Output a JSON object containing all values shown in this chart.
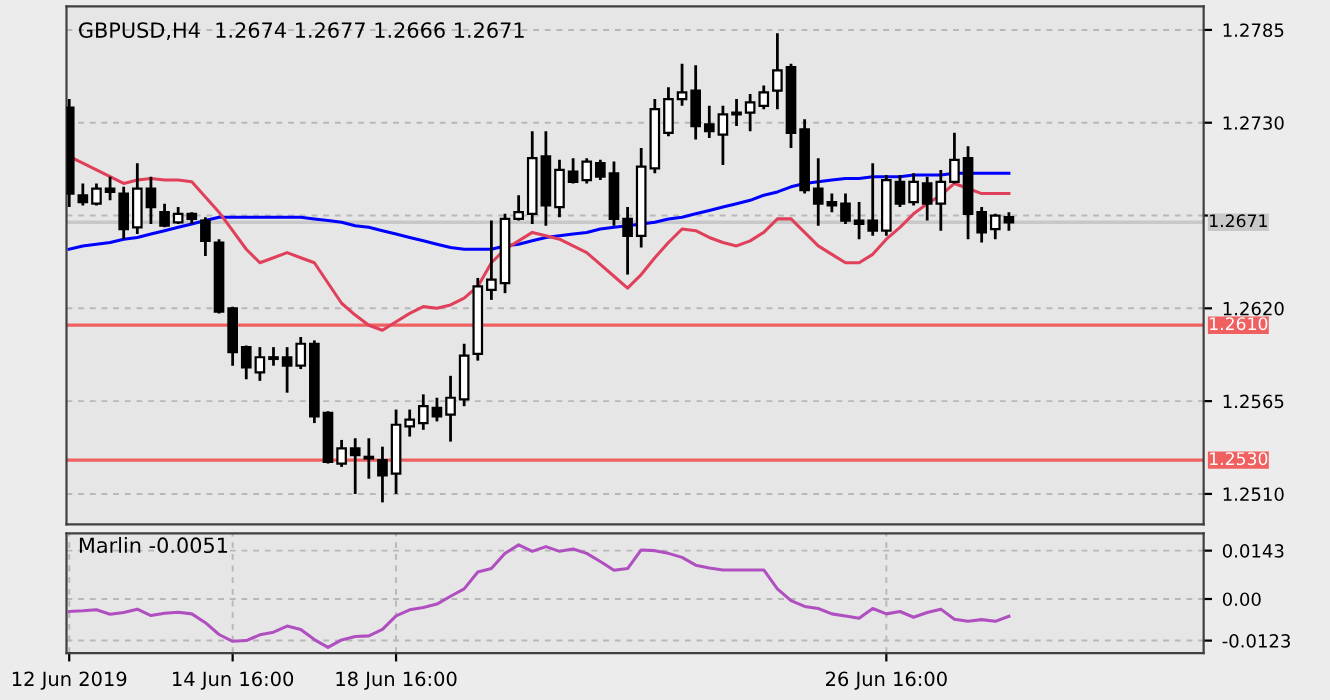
{
  "chart_data": [
    {
      "type": "candlestick",
      "title": "GBPUSD,H4  1.2674 1.2677 1.2666 1.2671",
      "categories": [
        null,
        null,
        null,
        null,
        null,
        null,
        null,
        null,
        null,
        null,
        null,
        null,
        null,
        null,
        null,
        null,
        null,
        null,
        null,
        null,
        null,
        null,
        null,
        null,
        null,
        null,
        null,
        null,
        null,
        null,
        null,
        null,
        null,
        null,
        null,
        null,
        null,
        null,
        null,
        null,
        null,
        null,
        null,
        null,
        null,
        null,
        null,
        null,
        null,
        null,
        null,
        null,
        null,
        null,
        null,
        null,
        null,
        null,
        null,
        null,
        null,
        null,
        null,
        null,
        null,
        null,
        null,
        null,
        null,
        null
      ],
      "ohlc": [
        [
          1.2739,
          1.2744,
          1.268,
          1.2688
        ],
        [
          1.2687,
          1.2694,
          1.2681,
          1.2683
        ],
        [
          1.2682,
          1.2694,
          1.2681,
          1.2691
        ],
        [
          1.2691,
          1.2698,
          1.2684,
          1.2689
        ],
        [
          1.2688,
          1.2692,
          1.2661,
          1.2667
        ],
        [
          1.2668,
          1.2706,
          1.2664,
          1.2691
        ],
        [
          1.2691,
          1.2698,
          1.267,
          1.268
        ],
        [
          1.2677,
          1.2682,
          1.2668,
          1.2669
        ],
        [
          1.2671,
          1.268,
          1.267,
          1.2676
        ],
        [
          1.2676,
          1.2677,
          1.267,
          1.2673
        ],
        [
          1.2672,
          1.2674,
          1.2651,
          1.266
        ],
        [
          1.2659,
          1.2661,
          1.2617,
          1.2618
        ],
        [
          1.262,
          1.2621,
          1.2586,
          1.2594
        ],
        [
          1.2597,
          1.2598,
          1.2578,
          1.2585
        ],
        [
          1.2582,
          1.2597,
          1.2577,
          1.2591
        ],
        [
          1.259,
          1.2597,
          1.2586,
          1.2591
        ],
        [
          1.2591,
          1.2597,
          1.257,
          1.2586
        ],
        [
          1.2586,
          1.2603,
          1.2584,
          1.2599
        ],
        [
          1.2599,
          1.2601,
          1.2552,
          1.2556
        ],
        [
          1.2558,
          1.2559,
          1.2528,
          1.2529
        ],
        [
          1.2528,
          1.2542,
          1.2526,
          1.2537
        ],
        [
          1.2537,
          1.2543,
          1.251,
          1.2533
        ],
        [
          1.2532,
          1.2543,
          1.2519,
          1.2531
        ],
        [
          1.253,
          1.2538,
          1.2505,
          1.2521
        ],
        [
          1.2522,
          1.256,
          1.251,
          1.2551
        ],
        [
          1.255,
          1.256,
          1.2544,
          1.2554
        ],
        [
          1.2552,
          1.2569,
          1.2548,
          1.2562
        ],
        [
          1.2561,
          1.2567,
          1.2553,
          1.2556
        ],
        [
          1.2557,
          1.258,
          1.2541,
          1.2567
        ],
        [
          1.2566,
          1.2599,
          1.2562,
          1.2592
        ],
        [
          1.2593,
          1.2638,
          1.2589,
          1.2633
        ],
        [
          1.2631,
          1.2672,
          1.2625,
          1.2637
        ],
        [
          1.2635,
          1.2676,
          1.2629,
          1.2673
        ],
        [
          1.2673,
          1.2687,
          1.2672,
          1.2677
        ],
        [
          1.2676,
          1.2725,
          1.267,
          1.2709
        ],
        [
          1.271,
          1.2725,
          1.2669,
          1.2681
        ],
        [
          1.268,
          1.2708,
          1.2674,
          1.2702
        ],
        [
          1.2701,
          1.2709,
          1.2694,
          1.2695
        ],
        [
          1.2696,
          1.2709,
          1.2694,
          1.2707
        ],
        [
          1.2706,
          1.2708,
          1.2696,
          1.2698
        ],
        [
          1.27,
          1.2707,
          1.2669,
          1.2673
        ],
        [
          1.2673,
          1.268,
          1.264,
          1.2663
        ],
        [
          1.2663,
          1.2715,
          1.2656,
          1.2704
        ],
        [
          1.2703,
          1.2744,
          1.27,
          1.2738
        ],
        [
          1.2724,
          1.2751,
          1.2722,
          1.2744
        ],
        [
          1.2744,
          1.2765,
          1.274,
          1.2748
        ],
        [
          1.2749,
          1.2764,
          1.272,
          1.2728
        ],
        [
          1.2729,
          1.274,
          1.2721,
          1.2725
        ],
        [
          1.2723,
          1.274,
          1.2705,
          1.2735
        ],
        [
          1.2735,
          1.2744,
          1.2728,
          1.2736
        ],
        [
          1.2736,
          1.2747,
          1.2725,
          1.2742
        ],
        [
          1.274,
          1.2752,
          1.2738,
          1.2748
        ],
        [
          1.2749,
          1.2783,
          1.2738,
          1.2761
        ],
        [
          1.2763,
          1.2765,
          1.2715,
          1.2724
        ],
        [
          1.2726,
          1.2732,
          1.2688,
          1.269
        ],
        [
          1.2691,
          1.2709,
          1.2669,
          1.2682
        ],
        [
          1.2683,
          1.2688,
          1.2677,
          1.2681
        ],
        [
          1.2682,
          1.2688,
          1.267,
          1.2672
        ],
        [
          1.2672,
          1.2683,
          1.2661,
          1.267
        ],
        [
          1.2672,
          1.2706,
          1.2663,
          1.2666
        ],
        [
          1.2666,
          1.2699,
          1.2663,
          1.2696
        ],
        [
          1.2695,
          1.2699,
          1.268,
          1.2682
        ],
        [
          1.2683,
          1.27,
          1.2681,
          1.2695
        ],
        [
          1.2694,
          1.2698,
          1.2672,
          1.2682
        ],
        [
          1.2682,
          1.2702,
          1.2666,
          1.2695
        ],
        [
          1.2695,
          1.2724,
          1.2694,
          1.2708
        ],
        [
          1.2709,
          1.2716,
          1.2661,
          1.2676
        ],
        [
          1.2677,
          1.268,
          1.2659,
          1.2665
        ],
        [
          1.2667,
          1.2676,
          1.2661,
          1.2675
        ],
        [
          1.2674,
          1.2677,
          1.2666,
          1.2671
        ]
      ],
      "series": [
        {
          "type": "line",
          "color": "#0000ff",
          "values": [
            1.2655,
            1.2657,
            1.2658,
            1.2659,
            1.2661,
            1.2662,
            1.2664,
            1.2666,
            1.2668,
            1.267,
            1.2672,
            1.2674,
            1.2674,
            1.2674,
            1.2674,
            1.2674,
            1.2674,
            1.2674,
            1.2673,
            1.2672,
            1.2671,
            1.2669,
            1.2668,
            1.2666,
            1.2664,
            1.2662,
            1.266,
            1.2658,
            1.2656,
            1.2655,
            1.2655,
            1.2655,
            1.2657,
            1.2658,
            1.266,
            1.2662,
            1.2663,
            1.2664,
            1.2665,
            1.2667,
            1.2668,
            1.2669,
            1.267,
            1.2671,
            1.2673,
            1.2674,
            1.2676,
            1.2678,
            1.268,
            1.2682,
            1.2684,
            1.2687,
            1.2689,
            1.2692,
            1.2694,
            1.2695,
            1.2696,
            1.2697,
            1.2697,
            1.2698,
            1.2698,
            1.2698,
            1.2699,
            1.2699,
            1.2699,
            1.27,
            1.27,
            1.27,
            1.27,
            1.27
          ]
        },
        {
          "type": "line",
          "color": "#e0405a",
          "values": [
            1.271,
            1.2706,
            1.2702,
            1.2698,
            1.2694,
            1.2696,
            1.2697,
            1.2696,
            1.2696,
            1.2695,
            1.2686,
            1.2677,
            1.2666,
            1.2655,
            1.2647,
            1.265,
            1.2653,
            1.265,
            1.2647,
            1.2635,
            1.2623,
            1.2616,
            1.261,
            1.2607,
            1.2612,
            1.2617,
            1.2621,
            1.262,
            1.2622,
            1.2626,
            1.2633,
            1.2647,
            1.2655,
            1.266,
            1.2665,
            1.2663,
            1.2661,
            1.2657,
            1.2653,
            1.2646,
            1.2639,
            1.2632,
            1.264,
            1.265,
            1.2659,
            1.2667,
            1.2666,
            1.2662,
            1.2659,
            1.2657,
            1.266,
            1.2665,
            1.2673,
            1.2673,
            1.2665,
            1.2657,
            1.2652,
            1.2647,
            1.2647,
            1.2652,
            1.2661,
            1.2668,
            1.2676,
            1.2682,
            1.2687,
            1.2694,
            1.2691,
            1.2688,
            1.2688,
            1.2688
          ]
        }
      ],
      "ylim": [
        1.2492,
        1.2799
      ],
      "yticks": [
        1.2785,
        {
          "value": 1.273,
          "label": "1.2730"
        },
        {
          "value": 1.2675,
          "label": null
        },
        {
          "value": 1.262,
          "label": "1.2620"
        },
        1.2565,
        {
          "value": 1.251,
          "label": "1.2510"
        }
      ],
      "tick_labels": "y",
      "grid": true,
      "ref_lines": [
        {
          "axis": "y",
          "value": 1.261,
          "label": "1.2610",
          "color": "#f06060"
        },
        {
          "axis": "y",
          "value": 1.253,
          "label": "1.2530",
          "color": "#f06060"
        },
        {
          "axis": "y",
          "value": 1.2671,
          "label": "1.2671",
          "color": "#c8c8c8"
        }
      ]
    },
    {
      "type": "line",
      "title": "Marlin -0.0051",
      "categories": [
        "12 Jun 2019",
        null,
        null,
        null,
        null,
        null,
        null,
        null,
        null,
        null,
        null,
        null,
        "14 Jun 16:00",
        null,
        null,
        null,
        null,
        null,
        null,
        null,
        null,
        null,
        null,
        null,
        "18 Jun 16:00",
        null,
        null,
        null,
        null,
        null,
        null,
        null,
        null,
        null,
        null,
        null,
        null,
        null,
        null,
        null,
        null,
        null,
        null,
        null,
        null,
        null,
        null,
        null,
        null,
        null,
        null,
        null,
        null,
        null,
        null,
        null,
        null,
        null,
        null,
        null,
        "26 Jun 16:00",
        null,
        null,
        null,
        null,
        null,
        null,
        null,
        null,
        null
      ],
      "series": [
        {
          "color": "#b050c0",
          "values": [
            -0.0037,
            -0.0035,
            -0.0032,
            -0.0045,
            -0.004,
            -0.003,
            -0.0049,
            -0.0042,
            -0.0039,
            -0.0044,
            -0.007,
            -0.0105,
            -0.0125,
            -0.0123,
            -0.0106,
            -0.0098,
            -0.008,
            -0.009,
            -0.012,
            -0.0143,
            -0.0121,
            -0.0111,
            -0.0109,
            -0.009,
            -0.005,
            -0.0032,
            -0.0025,
            -0.0015,
            0.0008,
            0.003,
            0.008,
            0.009,
            0.0135,
            0.016,
            0.0141,
            0.0155,
            0.0141,
            0.0148,
            0.0135,
            0.0111,
            0.0085,
            0.009,
            0.0145,
            0.0143,
            0.0135,
            0.0123,
            0.01,
            0.0092,
            0.0086,
            0.0086,
            0.0086,
            0.0086,
            0.003,
            -0.0005,
            -0.0022,
            -0.0028,
            -0.0044,
            -0.005,
            -0.0057,
            -0.0028,
            -0.0044,
            -0.0037,
            -0.0054,
            -0.004,
            -0.003,
            -0.006,
            -0.0066,
            -0.0061,
            -0.0066,
            -0.0051
          ]
        }
      ],
      "ylim": [
        -0.016,
        0.0194
      ],
      "yticks": [
        0.0143,
        {
          "value": 0,
          "label": "0.00"
        },
        -0.0123
      ],
      "grid": true
    }
  ]
}
